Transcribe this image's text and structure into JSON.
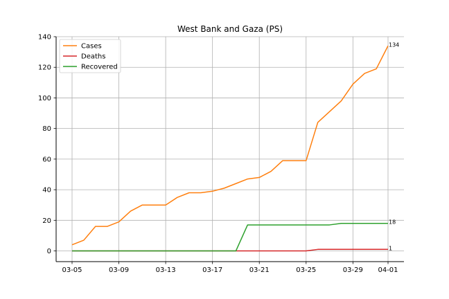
{
  "chart_data": {
    "type": "line",
    "title": "West Bank and Gaza (PS)",
    "xlabel": "",
    "ylabel": "",
    "x": [
      "03-05",
      "03-06",
      "03-07",
      "03-08",
      "03-09",
      "03-10",
      "03-11",
      "03-12",
      "03-13",
      "03-14",
      "03-15",
      "03-16",
      "03-17",
      "03-18",
      "03-19",
      "03-20",
      "03-21",
      "03-22",
      "03-23",
      "03-24",
      "03-25",
      "03-26",
      "03-27",
      "03-28",
      "03-29",
      "03-30",
      "03-31",
      "04-01"
    ],
    "xticks": [
      "03-05",
      "03-09",
      "03-13",
      "03-17",
      "03-21",
      "03-25",
      "03-29",
      "04-01"
    ],
    "ylim": [
      -7,
      140
    ],
    "yticks": [
      0,
      20,
      40,
      60,
      80,
      100,
      120,
      140
    ],
    "grid": true,
    "legend_position": "top-left",
    "series": [
      {
        "name": "Cases",
        "color": "#ff7f0e",
        "values": [
          4,
          7,
          16,
          16,
          19,
          26,
          30,
          30,
          30,
          35,
          38,
          38,
          39,
          41,
          44,
          47,
          48,
          52,
          59,
          59,
          59,
          84,
          91,
          98,
          109,
          116,
          119,
          134
        ],
        "end_label": "134"
      },
      {
        "name": "Deaths",
        "color": "#d62728",
        "values": [
          0,
          0,
          0,
          0,
          0,
          0,
          0,
          0,
          0,
          0,
          0,
          0,
          0,
          0,
          0,
          0,
          0,
          0,
          0,
          0,
          0,
          1,
          1,
          1,
          1,
          1,
          1,
          1
        ],
        "end_label": "1"
      },
      {
        "name": "Recovered",
        "color": "#2ca02c",
        "values": [
          0,
          0,
          0,
          0,
          0,
          0,
          0,
          0,
          0,
          0,
          0,
          0,
          0,
          0,
          0,
          17,
          17,
          17,
          17,
          17,
          17,
          17,
          17,
          18,
          18,
          18,
          18,
          18
        ],
        "end_label": "18"
      }
    ]
  }
}
